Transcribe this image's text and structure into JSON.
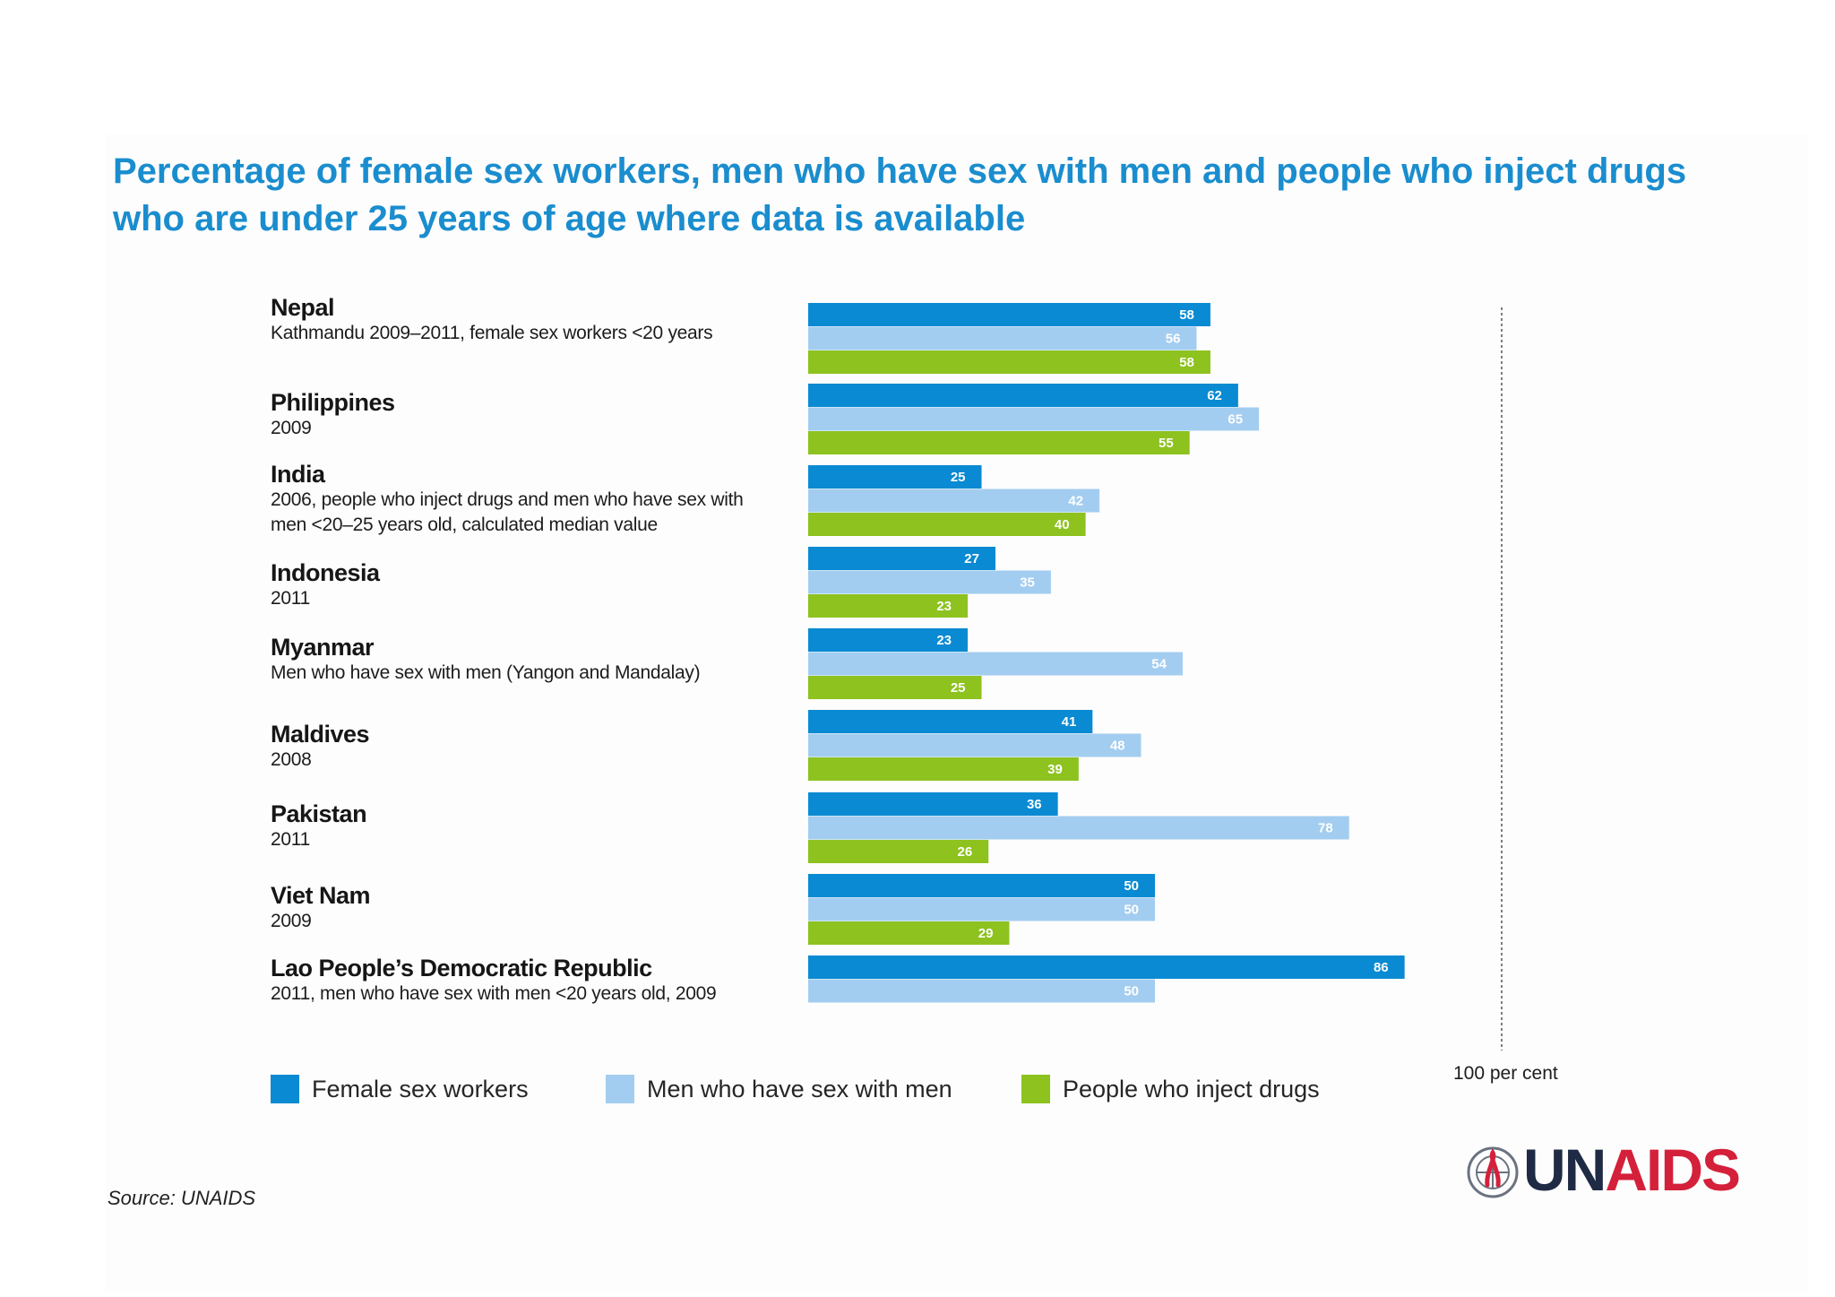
{
  "colors": {
    "title": "#1a8dce",
    "fsw": "#0a8ad2",
    "msm": "#a3cdf0",
    "pwid": "#8dc21f",
    "logo_un": "#1f2a44",
    "logo_aids": "#d4203a"
  },
  "chart_data": {
    "type": "bar",
    "orientation": "horizontal",
    "title": "Percentage of female sex workers, men who have sex with men and people who inject drugs who are under 25 years of age where data is available",
    "xlim": [
      0,
      100
    ],
    "reference_line": {
      "value": 100,
      "label": "100 per cent"
    },
    "categories": [
      {
        "country": "Nepal",
        "note": "Kathmandu 2009–2011, female sex workers <20 years"
      },
      {
        "country": "Philippines",
        "note": "2009"
      },
      {
        "country": "India",
        "note": "2006, people who inject drugs and men who have sex with men <20–25 years old, calculated median value"
      },
      {
        "country": "Indonesia",
        "note": "2011"
      },
      {
        "country": "Myanmar",
        "note": "Men who have sex with men (Yangon and Mandalay)"
      },
      {
        "country": "Maldives",
        "note": "2008"
      },
      {
        "country": "Pakistan",
        "note": "2011"
      },
      {
        "country": "Viet Nam",
        "note": "2009"
      },
      {
        "country": "Lao People’s Democratic Republic",
        "note": "2011, men who have sex with men <20 years old, 2009"
      }
    ],
    "series": [
      {
        "name": "Female sex workers",
        "color": "#0a8ad2",
        "values": [
          58,
          62,
          25,
          27,
          23,
          41,
          36,
          50,
          86
        ]
      },
      {
        "name": "Men who have sex with men",
        "color": "#a3cdf0",
        "values": [
          56,
          65,
          42,
          35,
          54,
          48,
          78,
          50,
          50
        ]
      },
      {
        "name": "People who inject drugs",
        "color": "#8dc21f",
        "values": [
          58,
          55,
          40,
          23,
          25,
          39,
          26,
          29,
          null
        ]
      }
    ],
    "legend_position": "bottom"
  },
  "source": "Source: UNAIDS",
  "logo": {
    "un": "UN",
    "aids": "AIDS"
  }
}
